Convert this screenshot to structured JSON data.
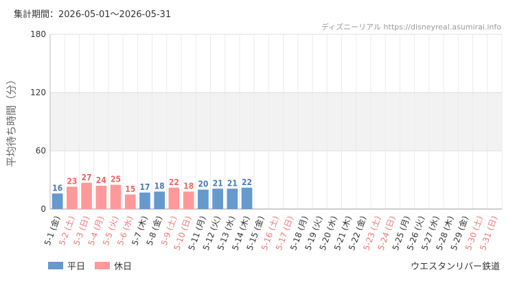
{
  "header": {
    "period": "集計期間：2026-05-01〜2026-05-31",
    "source": "ディズニーリアル https://disneyreal.asumirai.info"
  },
  "footer": {
    "attraction": "ウエスタンリバー鉄道"
  },
  "legend": [
    {
      "label": "平日",
      "color": "#6699cc"
    },
    {
      "label": "休日",
      "color": "#ff9999"
    }
  ],
  "colors": {
    "weekday_bar": "#6699cc",
    "holiday_bar": "#ff9999",
    "weekday_label": "#4d7ab0",
    "holiday_label": "#ee6666",
    "weekday_tick": "#333333",
    "holiday_tick": "#ee7777",
    "band": "#f2f2f2"
  },
  "chart_data": {
    "type": "bar",
    "ylabel": "平均待ち時間（分）",
    "ylim": [
      0,
      180
    ],
    "yticks": [
      0,
      60,
      120,
      180
    ],
    "grid": true,
    "legend_position": "bottom-left",
    "categories": [
      "5-1 (金)",
      "5-2 (土)",
      "5-3 (日)",
      "5-4 (月)",
      "5-5 (火)",
      "5-6 (水)",
      "5-7 (木)",
      "5-8 (金)",
      "5-9 (土)",
      "5-10 (日)",
      "5-11 (月)",
      "5-12 (火)",
      "5-13 (水)",
      "5-14 (木)",
      "5-15 (金)",
      "5-16 (土)",
      "5-17 (日)",
      "5-18 (月)",
      "5-19 (火)",
      "5-20 (水)",
      "5-21 (木)",
      "5-22 (金)",
      "5-23 (土)",
      "5-24 (日)",
      "5-25 (月)",
      "5-26 (火)",
      "5-27 (水)",
      "5-28 (木)",
      "5-29 (金)",
      "5-30 (土)",
      "5-31 (日)"
    ],
    "day_type": [
      "平日",
      "休日",
      "休日",
      "休日",
      "休日",
      "休日",
      "平日",
      "平日",
      "休日",
      "休日",
      "平日",
      "平日",
      "平日",
      "平日",
      "平日",
      "休日",
      "休日",
      "平日",
      "平日",
      "平日",
      "平日",
      "平日",
      "休日",
      "休日",
      "平日",
      "平日",
      "平日",
      "平日",
      "平日",
      "休日",
      "休日"
    ],
    "values": [
      16,
      23,
      27,
      24,
      25,
      15,
      17,
      18,
      22,
      18,
      20,
      21,
      21,
      22,
      null,
      null,
      null,
      null,
      null,
      null,
      null,
      null,
      null,
      null,
      null,
      null,
      null,
      null,
      null,
      null,
      null
    ]
  }
}
